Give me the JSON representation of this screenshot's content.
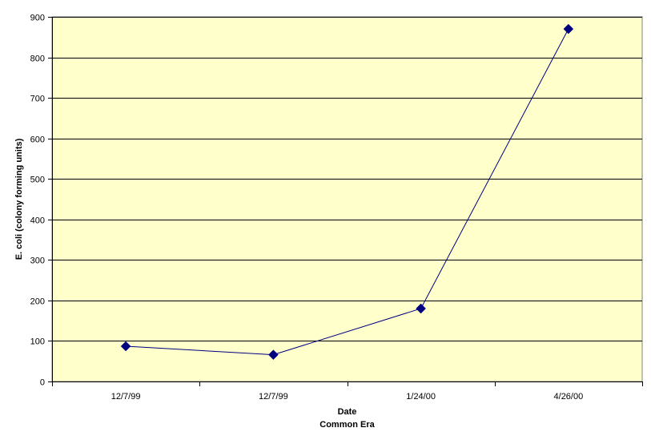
{
  "chart_data": {
    "type": "line",
    "title": "",
    "xlabel": "Date",
    "xlabel_line2": "Common Era",
    "ylabel": "E. coli (colony forming units)",
    "categories": [
      "12/7/99",
      "12/7/99",
      "1/24/00",
      "4/26/00"
    ],
    "series": [
      {
        "values": [
          87,
          66,
          180,
          870
        ],
        "color": "#000080",
        "marker": "diamond"
      }
    ],
    "ylim": [
      0,
      900
    ],
    "yticks": [
      0,
      100,
      200,
      300,
      400,
      500,
      600,
      700,
      800,
      900
    ],
    "grid": true,
    "legend": "none",
    "plot_background": "#FFFFCC",
    "gridline_color": "#000000"
  }
}
